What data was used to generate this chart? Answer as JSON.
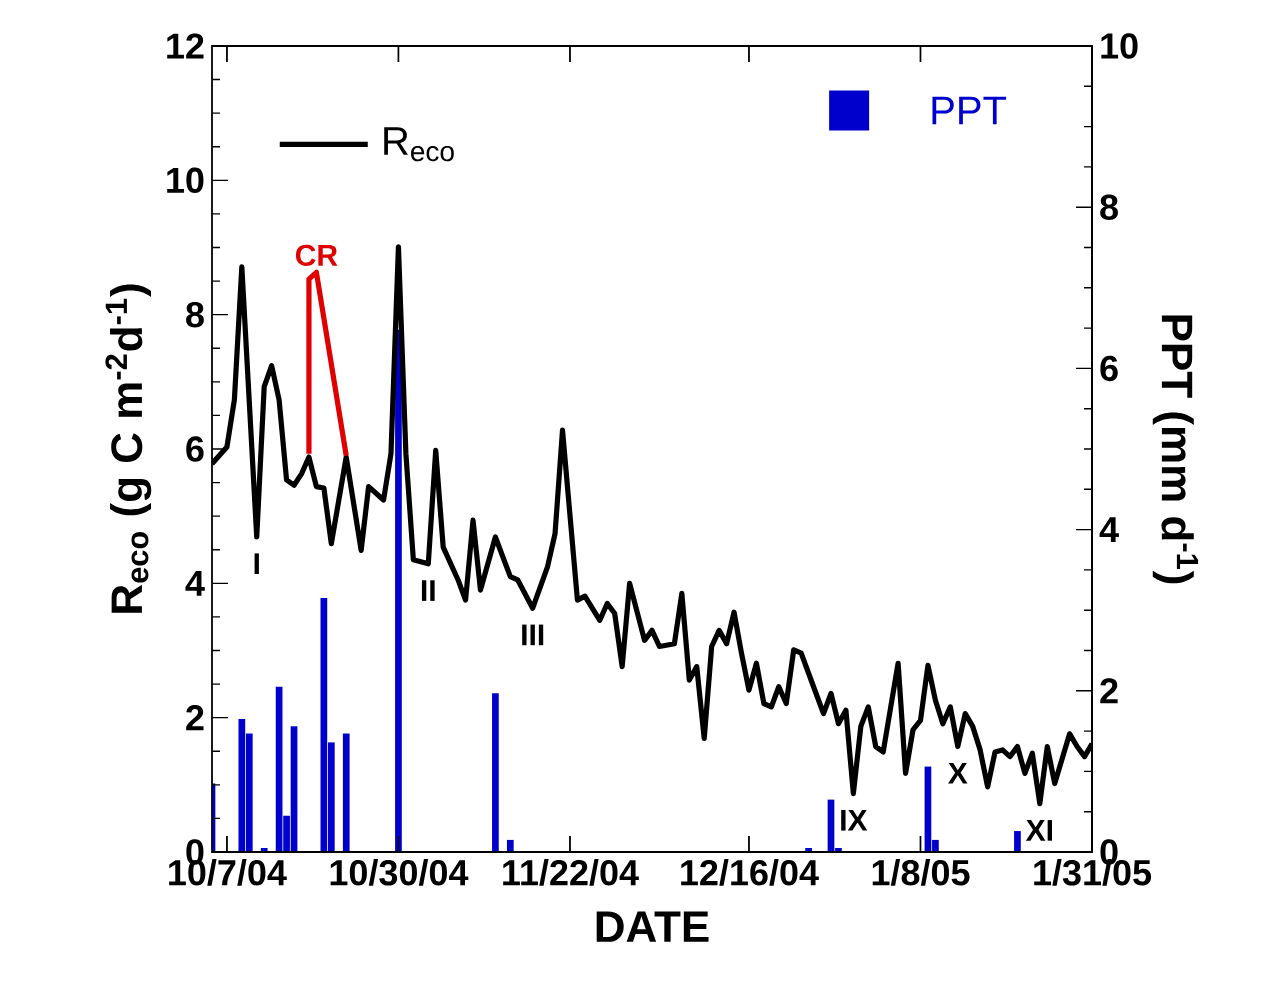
{
  "chart_data": {
    "type": "line",
    "xlabel": "DATE",
    "ylabel": "R$_{eco}$ (g C m$^{-2}$d$^{-1}$)",
    "y2label": "PPT (mm d$^{-1}$)",
    "xlim": [
      "2004-10-05",
      "2005-01-31"
    ],
    "xticks": [
      {
        "value": "2004-10-07",
        "label": "10/7/04"
      },
      {
        "value": "2004-10-30",
        "label": "10/30/04"
      },
      {
        "value": "2004-11-22",
        "label": "11/22/04"
      },
      {
        "value": "2004-12-16",
        "label": "12/16/04"
      },
      {
        "value": "2005-01-08",
        "label": "1/8/05"
      },
      {
        "value": "2005-01-31",
        "label": "1/31/05"
      }
    ],
    "ylim": [
      0,
      12
    ],
    "yticks": [
      0,
      2,
      4,
      6,
      8,
      10,
      12
    ],
    "y2lim": [
      0,
      10
    ],
    "y2ticks": [
      0,
      2,
      4,
      6,
      8,
      10
    ],
    "legend": "top",
    "series": [
      {
        "name": "R$_{eco}$",
        "color": "#000000",
        "x": [
          "2004-10-05",
          "2004-10-07",
          "2004-10-08",
          "2004-10-09",
          "2004-10-11",
          "2004-10-12",
          "2004-10-13",
          "2004-10-14",
          "2004-10-15",
          "2004-10-16",
          "2004-10-17",
          "2004-10-18",
          "2004-10-19",
          "2004-10-20",
          "2004-10-21",
          "2004-10-23",
          "2004-10-25",
          "2004-10-26",
          "2004-10-28",
          "2004-10-29",
          "2004-10-30",
          "2004-10-31",
          "2004-11-01",
          "2004-11-03",
          "2004-11-04",
          "2004-11-05",
          "2004-11-07",
          "2004-11-08",
          "2004-11-09",
          "2004-11-10",
          "2004-11-12",
          "2004-11-14",
          "2004-11-15",
          "2004-11-17",
          "2004-11-19",
          "2004-11-20",
          "2004-11-21",
          "2004-11-23",
          "2004-11-24",
          "2004-11-26",
          "2004-11-27",
          "2004-11-28",
          "2004-11-29",
          "2004-11-30",
          "2004-12-02",
          "2004-12-03",
          "2004-12-04",
          "2004-12-06",
          "2004-12-07",
          "2004-12-08",
          "2004-12-09",
          "2004-12-10",
          "2004-12-11",
          "2004-12-12",
          "2004-12-13",
          "2004-12-14",
          "2004-12-15",
          "2004-12-16",
          "2004-12-17",
          "2004-12-18",
          "2004-12-19",
          "2004-12-20",
          "2004-12-21",
          "2004-12-22",
          "2004-12-23",
          "2004-12-25",
          "2004-12-26",
          "2004-12-27",
          "2004-12-28",
          "2004-12-29",
          "2004-12-30",
          "2004-12-31",
          "2005-01-01",
          "2005-01-02",
          "2005-01-03",
          "2005-01-05",
          "2005-01-06",
          "2005-01-07",
          "2005-01-08",
          "2005-01-09",
          "2005-01-10",
          "2005-01-11",
          "2005-01-12",
          "2005-01-13",
          "2005-01-14",
          "2005-01-15",
          "2005-01-16",
          "2005-01-17",
          "2005-01-18",
          "2005-01-19",
          "2005-01-20",
          "2005-01-21",
          "2005-01-22",
          "2005-01-23",
          "2005-01-24",
          "2005-01-25",
          "2005-01-26",
          "2005-01-28",
          "2005-01-29",
          "2005-01-30",
          "2005-01-31"
        ],
        "values": [
          5.78,
          6.03,
          6.73,
          8.71,
          4.69,
          6.93,
          7.24,
          6.73,
          5.54,
          5.46,
          5.63,
          5.88,
          5.44,
          5.42,
          4.59,
          5.88,
          4.49,
          5.44,
          5.24,
          5.93,
          9.01,
          5.93,
          4.35,
          4.29,
          5.98,
          4.54,
          4.05,
          3.75,
          4.94,
          3.9,
          4.69,
          4.1,
          4.05,
          3.63,
          4.25,
          4.74,
          6.28,
          3.75,
          3.81,
          3.45,
          3.7,
          3.55,
          2.76,
          4.0,
          3.15,
          3.3,
          3.06,
          3.1,
          3.85,
          2.56,
          2.76,
          1.69,
          3.06,
          3.3,
          3.1,
          3.57,
          2.96,
          2.41,
          2.81,
          2.21,
          2.16,
          2.46,
          2.21,
          3.01,
          2.96,
          2.36,
          2.06,
          2.36,
          1.91,
          2.11,
          0.87,
          1.87,
          2.16,
          1.57,
          1.49,
          2.81,
          1.17,
          1.82,
          1.96,
          2.78,
          2.26,
          1.91,
          2.16,
          1.57,
          2.06,
          1.87,
          1.52,
          0.97,
          1.49,
          1.52,
          1.42,
          1.57,
          1.17,
          1.47,
          0.72,
          1.57,
          1.02,
          1.76,
          1.57,
          1.42,
          1.61
        ]
      },
      {
        "name": "CR",
        "type": "line",
        "color": "#e00000",
        "x": [
          "2004-10-18",
          "2004-10-18",
          "2004-10-19",
          "2004-10-23"
        ],
        "values": [
          5.93,
          8.53,
          8.63,
          5.9
        ]
      },
      {
        "name": "PPT",
        "type": "bar",
        "axis": "y2",
        "color": "#0000cc",
        "x": [
          "2004-10-05",
          "2004-10-09",
          "2004-10-10",
          "2004-10-12",
          "2004-10-14",
          "2004-10-15",
          "2004-10-16",
          "2004-10-20",
          "2004-10-21",
          "2004-10-23",
          "2004-10-30",
          "2004-11-12",
          "2004-11-14",
          "2004-12-24",
          "2004-12-27",
          "2004-12-28",
          "2005-01-09",
          "2005-01-10",
          "2005-01-21"
        ],
        "values": [
          0.85,
          1.65,
          1.47,
          0.05,
          2.05,
          0.45,
          1.56,
          3.15,
          1.36,
          1.47,
          6.48,
          1.97,
          0.15,
          0.05,
          0.65,
          0.05,
          1.06,
          0.15,
          0.26
        ]
      }
    ],
    "annotations": [
      {
        "text": "I",
        "x": "2004-10-11",
        "y": 4.69
      },
      {
        "text": "II",
        "x": "2004-11-03",
        "y": 4.29
      },
      {
        "text": "III",
        "x": "2004-11-17",
        "y": 3.63
      },
      {
        "text": "IX",
        "x": "2004-12-30",
        "y": 0.87
      },
      {
        "text": "X",
        "x": "2005-01-13",
        "y": 1.57
      },
      {
        "text": "XI",
        "x": "2005-01-24",
        "y": 0.72
      }
    ]
  }
}
